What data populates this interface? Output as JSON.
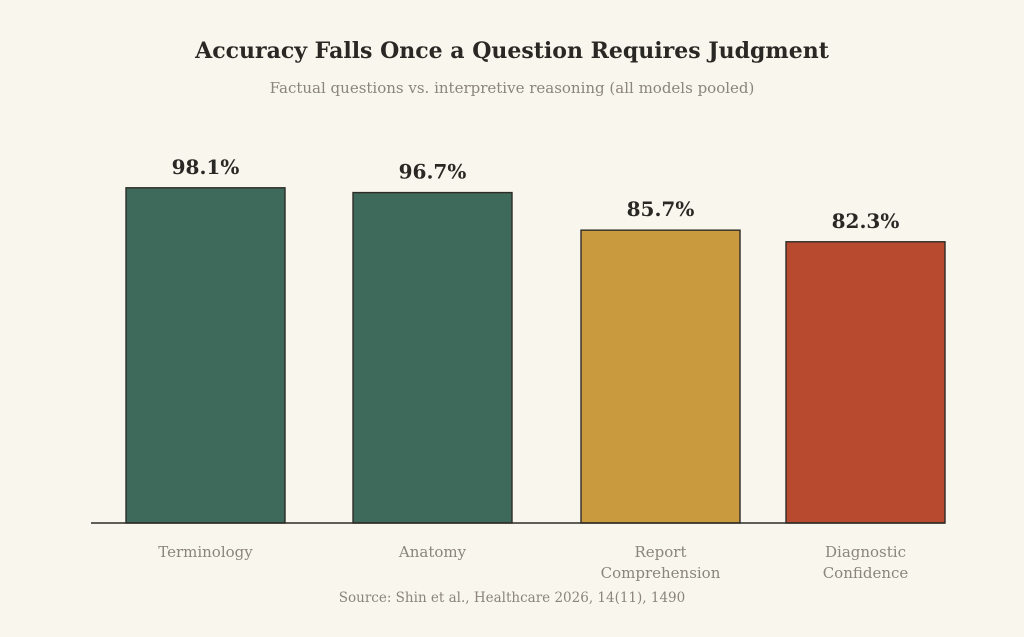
{
  "chart": {
    "title": "Accuracy Falls Once a Question Requires Judgment",
    "subtitle": "Factual questions vs. interpretive reasoning (all models pooled)",
    "source": "Source: Shin et al., Healthcare 2026, 14(11), 1490"
  },
  "chart_data": {
    "type": "bar",
    "title": "Accuracy Falls Once a Question Requires Judgment",
    "subtitle": "Factual questions vs. interpretive reasoning (all models pooled)",
    "categories": [
      "Terminology",
      "Anatomy",
      "Report Comprehension",
      "Diagnostic Confidence"
    ],
    "category_label_lines": [
      [
        "Terminology"
      ],
      [
        "Anatomy"
      ],
      [
        "Report",
        "Comprehension"
      ],
      [
        "Diagnostic",
        "Confidence"
      ]
    ],
    "values": [
      98.1,
      96.7,
      85.7,
      82.3
    ],
    "value_labels": [
      "98.1%",
      "96.7%",
      "85.7%",
      "82.3%"
    ],
    "colors": [
      "#3e6a5c",
      "#3e6a5c",
      "#c99a3e",
      "#b84a30"
    ],
    "xlabel": "",
    "ylabel": "",
    "ylim": [
      0,
      100
    ],
    "grid": false,
    "legend": "none",
    "source": "Source: Shin et al., Healthcare 2026, 14(11), 1490"
  }
}
